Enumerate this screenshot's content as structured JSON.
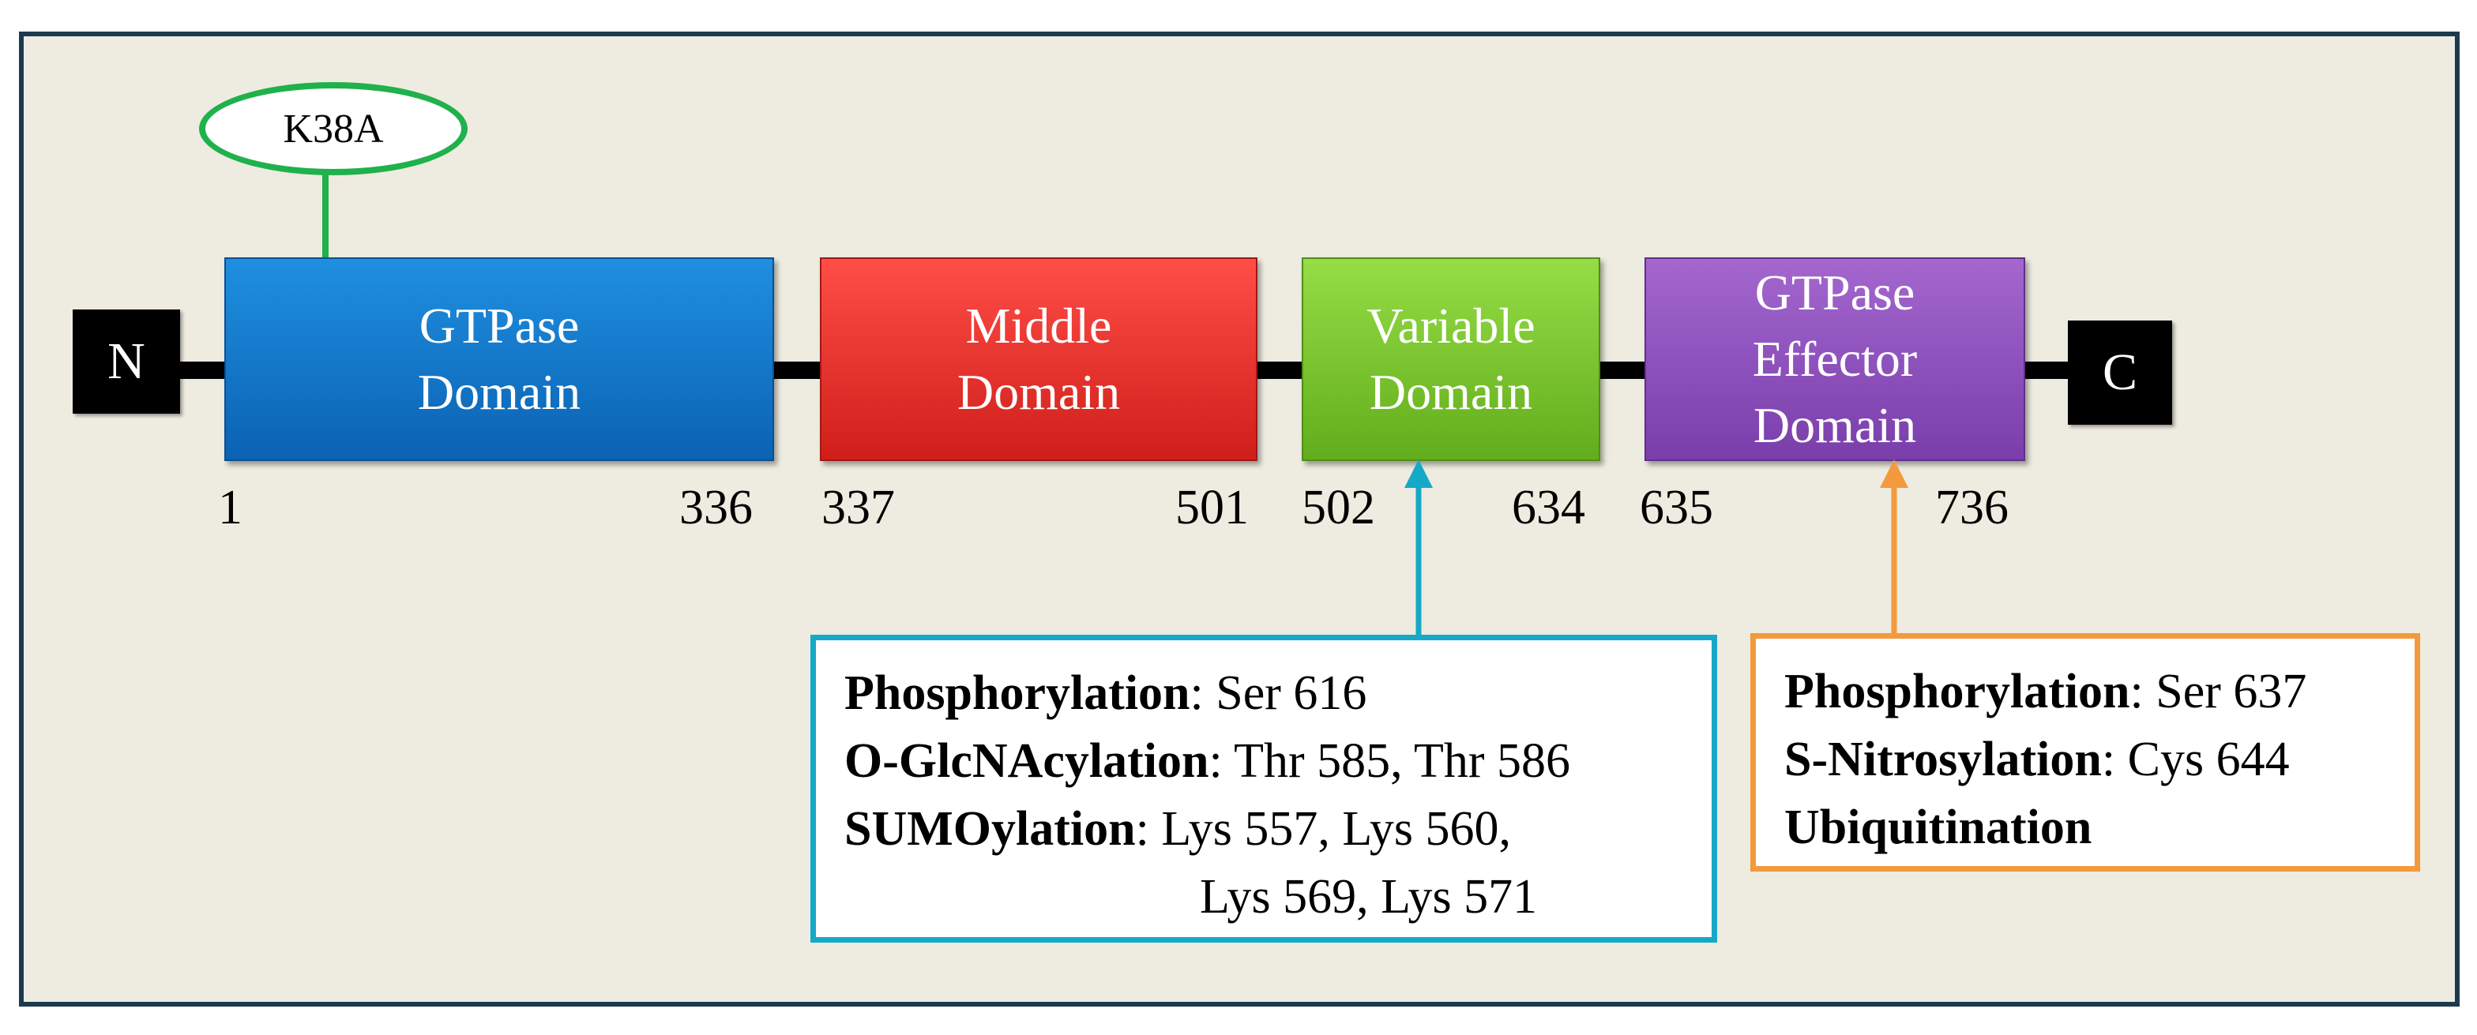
{
  "terminals": {
    "n": "N",
    "c": "C"
  },
  "mutation": {
    "label": "K38A"
  },
  "domains": [
    {
      "line1": "GTPase",
      "line2": "Domain",
      "line3": "",
      "start": "1",
      "end": "336"
    },
    {
      "line1": "Middle",
      "line2": "Domain",
      "line3": "",
      "start": "337",
      "end": "501"
    },
    {
      "line1": "Variable",
      "line2": "Domain",
      "line3": "",
      "start": "502",
      "end": "634"
    },
    {
      "line1": "GTPase",
      "line2": "Effector",
      "line3": "Domain",
      "start": "635",
      "end": "736"
    }
  ],
  "variable_ptms": {
    "color": "#16a9c7",
    "rows": [
      {
        "name": "Phosphorylation",
        "sites": ": Ser 616"
      },
      {
        "name": "O-GlcNAcylation",
        "sites": ": Thr 585, Thr 586"
      },
      {
        "name": "SUMOylation",
        "sites": ": Lys 557, Lys 560,"
      }
    ],
    "continuation": "Lys 569, Lys 571"
  },
  "effector_ptms": {
    "color": "#f39a3c",
    "rows": [
      {
        "name": "Phosphorylation",
        "sites": ": Ser 637"
      },
      {
        "name": "S-Nitrosylation",
        "sites": ": Cys 644"
      },
      {
        "name": "Ubiquitination",
        "sites": ""
      }
    ]
  },
  "colors": {
    "background": "#eeebe0",
    "frame": "#1c3a4e",
    "gtpase": "#1479cf",
    "middle": "#ea3430",
    "variable": "#7cc532",
    "effector": "#8d50bd",
    "mutation": "#1fb14b"
  }
}
